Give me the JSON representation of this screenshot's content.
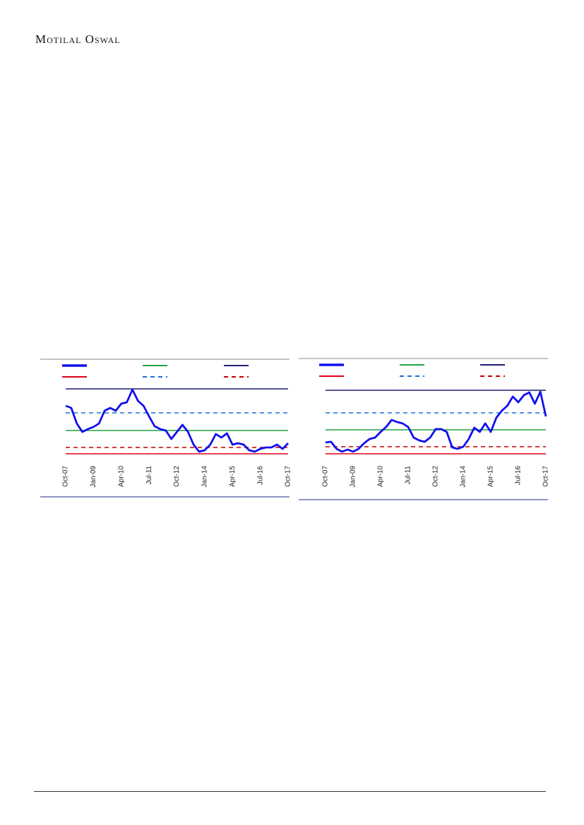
{
  "header": {
    "title": "Motilal Oswal"
  },
  "chart_data": [
    {
      "type": "line",
      "categories": [
        "Oct-07",
        null,
        null,
        null,
        null,
        "Jan-09",
        null,
        null,
        null,
        null,
        "Apr-10",
        null,
        null,
        null,
        null,
        "Jul-11",
        null,
        null,
        null,
        null,
        "Oct-12",
        null,
        null,
        null,
        null,
        "Jan-14",
        null,
        null,
        null,
        null,
        "Apr-15",
        null,
        null,
        null,
        null,
        "Jul-16",
        null,
        null,
        null,
        null,
        "Oct-17"
      ],
      "series": [
        {
          "color": "#1010f0",
          "values": [
            80,
            77,
            55,
            43,
            47,
            50,
            55,
            73,
            77,
            73,
            83,
            85,
            103,
            87,
            80,
            65,
            51,
            47,
            45,
            33,
            43,
            53,
            43,
            25,
            15,
            17,
            25,
            40,
            35,
            41,
            25,
            27,
            25,
            17,
            15,
            19,
            21,
            21,
            25,
            19,
            27
          ]
        }
      ],
      "reference_lines": [
        {
          "value": 104,
          "color": "#1f1f70",
          "dashed": false
        },
        {
          "value": 70,
          "color": "#1e6fd9",
          "dashed": true
        },
        {
          "value": 45,
          "color": "#21a345",
          "dashed": false
        },
        {
          "value": 21,
          "color": "#c00000",
          "dashed": true
        },
        {
          "value": 12,
          "color": "#e0001b",
          "dashed": false
        }
      ],
      "ylim": [
        0,
        110
      ]
    },
    {
      "type": "line",
      "categories": [
        "Oct-07",
        null,
        null,
        null,
        null,
        "Jan-09",
        null,
        null,
        null,
        null,
        "Apr-10",
        null,
        null,
        null,
        null,
        "Jul-11",
        null,
        null,
        null,
        null,
        "Oct-12",
        null,
        null,
        null,
        null,
        "Jan-14",
        null,
        null,
        null,
        null,
        "Apr-15",
        null,
        null,
        null,
        null,
        "Jul-16",
        null,
        null,
        null,
        null,
        "Oct-17"
      ],
      "series": [
        {
          "color": "#1010f0",
          "values": [
            28,
            29,
            19,
            15,
            18,
            15,
            19,
            27,
            33,
            35,
            43,
            50,
            60,
            57,
            55,
            50,
            35,
            31,
            29,
            35,
            47,
            47,
            43,
            21,
            19,
            22,
            33,
            49,
            43,
            55,
            43,
            63,
            73,
            80,
            93,
            85,
            95,
            99,
            83,
            100,
            65
          ]
        }
      ],
      "reference_lines": [
        {
          "value": 102,
          "color": "#1f1f70",
          "dashed": false
        },
        {
          "value": 70,
          "color": "#1e6fd9",
          "dashed": true
        },
        {
          "value": 46,
          "color": "#21a345",
          "dashed": false
        },
        {
          "value": 22,
          "color": "#c00000",
          "dashed": true
        },
        {
          "value": 12,
          "color": "#e0001b",
          "dashed": false
        }
      ],
      "ylim": [
        0,
        110
      ]
    }
  ]
}
